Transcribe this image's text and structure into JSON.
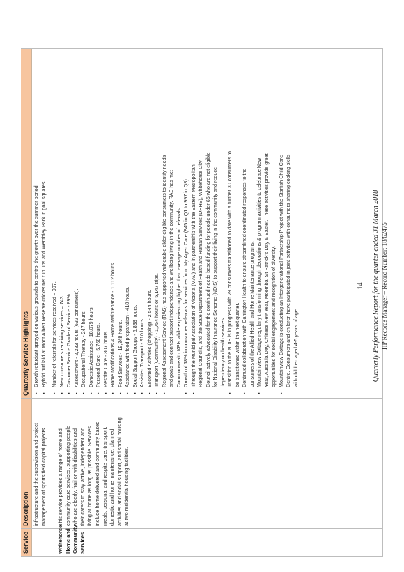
{
  "table": {
    "headers": {
      "service": "Service",
      "description": "Description",
      "highlights": "Quarterly Service Highlights"
    },
    "top_description": "infrastructure and the supervision and project management of sports field capital projects.",
    "service_name": [
      "Whitehorse",
      "Home and",
      "Community",
      "Services"
    ],
    "description_lines": [
      "This service provides a range of home and",
      "community care services, supporting people",
      "who are elderly, frail or with disabilities and",
      "their carers to stay active, independent and",
      "living at home as long as possible. Services",
      "include home delivered and community based",
      "meals, personal and respite care, transport,",
      "domestic and home maintenance, planned",
      "activities and social support, and social housing",
      "at two residential housing facilities."
    ],
    "top_highlights": [
      [
        "Growth retardant sprayed on various grounds to control the growth over the summer period."
      ],
      [
        "Hybrid turf laid at Mont Albert Reserve cricket net run ups and Wembley Park in goal squares."
      ]
    ],
    "highlights": [
      [
        "Number of referrals for services received – 997."
      ],
      [
        "New consumers receiving services – 743."
      ],
      [
        "Customer Service Grade of Service - 89%."
      ],
      [
        "Assessment - 2,283 hours (632 consumers)."
      ],
      [
        "Occupational Therapy - 247 hours."
      ],
      [
        "Domestic Assistance - 18,079 hours."
      ],
      [
        "Personal Care - 5,768 hours."
      ],
      [
        "Respite Care - 807 hours."
      ],
      [
        "Home Modifications & Home Maintenance - 1,112 hours."
      ],
      [
        "Food Services - 19,348 hours."
      ],
      [
        "Assistance with food preparation - 418 hours."
      ],
      [
        "Social Support Groups - 6,838 hours."
      ],
      [
        "Assisted Transport - 910 hours."
      ],
      [
        "Escorted Activities (shopping) - 2,544 hours."
      ],
      [
        "Transport (Community) - 1,754 hours or 5,147 trips."
      ],
      [
        "Regional Assessment Service (RAS) has supported vulnerable older eligible consumers to identify needs",
        "and goals and connect support independence and wellbeing living in the community. RAS has met",
        "Commonwealth KPIs while experiencing higher than average number of referrals."
      ],
      [
        "Growth of 18% in consumer referrals for services from My Aged Care (845 in Q1 to 997 in Q3)."
      ],
      [
        "Through the Municipal Association of Victoria (MAV) and in partnership with the Eastern Metropolitan",
        "Regional Councils, and the State Department of Health and Human Services (DHHS), Whitehorse City",
        "Council actively advocated for the continued needs based funding for people under 65 who are not eligible",
        "for National Disability Insurance Scheme (NDIS) to support their living in the community and reduce",
        "dependency on health services."
      ],
      [
        "Transition to the NDIS is in progress with 29 consumers transitioned to date with a further 30 consumers to",
        "be transitioned within the next quarter."
      ],
      [
        "Continued collaboration with Carrington Health to ensure streamlined coordinated responses to the",
        "consumers of the Allied Health and Home Maintenance programs."
      ],
      [
        "Mountainview Cottage regularly transforming through decorations & program activities to celebrate New",
        "Year, Australia Day, Chinese New Year, Moomba, St Patrick's Day & Easter. These activities provide great",
        "opportunities for social engagement and recognition of diversity."
      ],
      [
        "Mountainview Cottage is conducting an Intergenerational Partnership Project with the Starfish Child Care",
        "Centre. Consumers and children have participated in joint activities with consumers sharing cooking skills",
        "with children aged 4-5 years of age."
      ]
    ]
  },
  "footer": {
    "page_number": "14",
    "report_title": "Quarterly Performance Report for the quarter ended 31 March 2018",
    "record_ref": "HP Records Manager – Record Number: 18/62475"
  }
}
